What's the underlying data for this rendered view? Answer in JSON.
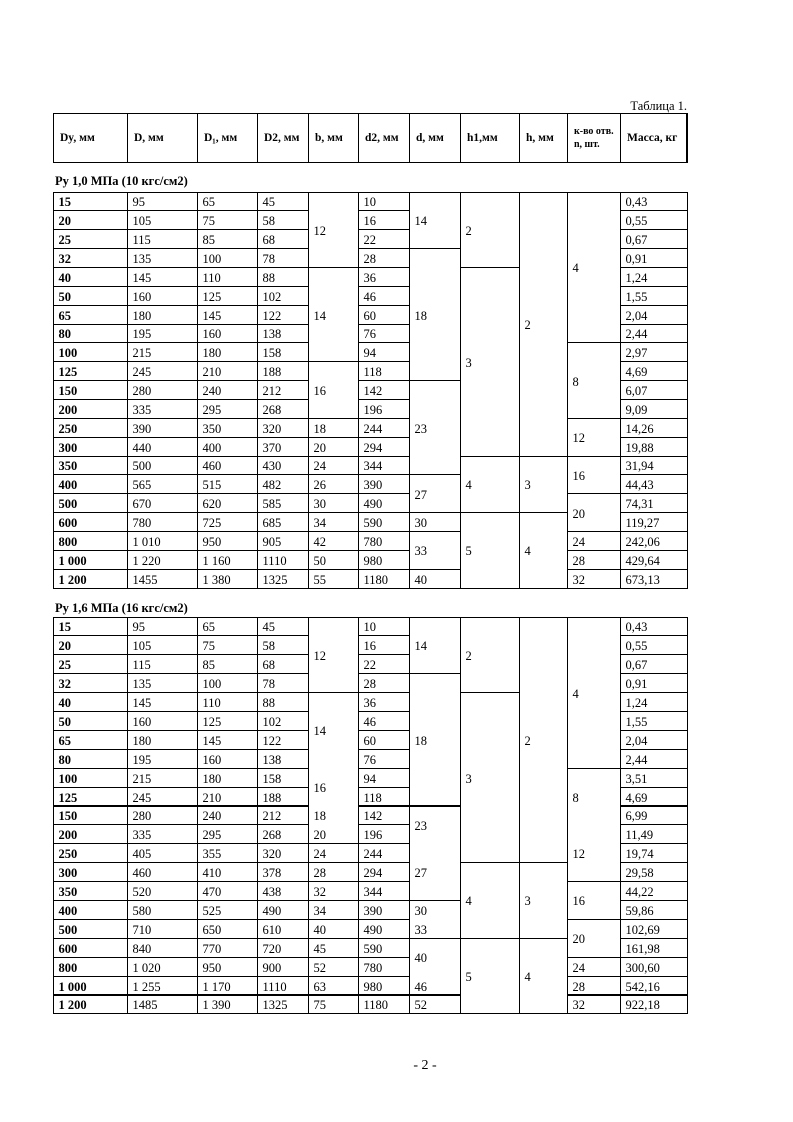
{
  "caption": "Таблица 1.",
  "headers": [
    "Dy, мм",
    "D, мм",
    "D₁, мм",
    "D2, мм",
    "b, мм",
    "d2, мм",
    "d, мм",
    "h1,мм",
    "h, мм",
    "к-во отв. n, шт.",
    "Масса, кг"
  ],
  "sections": [
    {
      "label": "Ру 1,0 МПа (10 кгс/см2)",
      "columns": {
        "dy": [
          "15",
          "20",
          "25",
          "32",
          "40",
          "50",
          "65",
          "80",
          "100",
          "125",
          "150",
          "200",
          "250",
          "300",
          "350",
          "400",
          "500",
          "600",
          "800",
          "1 000",
          "1 200"
        ],
        "D": [
          "95",
          "105",
          "115",
          "135",
          "145",
          "160",
          "180",
          "195",
          "215",
          "245",
          "280",
          "335",
          "390",
          "440",
          "500",
          "565",
          "670",
          "780",
          "1 010",
          "1 220",
          "1455"
        ],
        "D1": [
          "65",
          "75",
          "85",
          "100",
          "110",
          "125",
          "145",
          "160",
          "180",
          "210",
          "240",
          "295",
          "350",
          "400",
          "460",
          "515",
          "620",
          "725",
          "950",
          "1 160",
          "1 380"
        ],
        "D2": [
          "45",
          "58",
          "68",
          "78",
          "88",
          "102",
          "122",
          "138",
          "158",
          "188",
          "212",
          "268",
          "320",
          "370",
          "430",
          "482",
          "585",
          "685",
          "905",
          "1110",
          "1325"
        ],
        "b": [
          "12",
          "",
          "",
          "",
          "14",
          "",
          "",
          "",
          "",
          "16",
          "",
          "",
          "18",
          "20",
          "24",
          "26",
          "30",
          "34",
          "42",
          "50",
          "55"
        ],
        "d2": [
          "10",
          "16",
          "22",
          "28",
          "36",
          "46",
          "60",
          "76",
          "94",
          "118",
          "142",
          "196",
          "244",
          "294",
          "344",
          "390",
          "490",
          "590",
          "780",
          "980",
          "1180"
        ],
        "d": [
          "14",
          "",
          "",
          "18",
          "",
          "",
          "",
          "",
          "",
          "",
          "23",
          "",
          "",
          "",
          "",
          "27",
          "",
          "30",
          "33",
          "",
          "40"
        ],
        "h1": [
          "2",
          "",
          "",
          "",
          "3",
          "",
          "",
          "",
          "",
          "",
          "",
          "",
          "",
          "",
          "4",
          "",
          "",
          "5",
          "",
          "",
          ""
        ],
        "h": [
          "2",
          "",
          "",
          "",
          "",
          "",
          "",
          "",
          "",
          "",
          "",
          "",
          "",
          "",
          "3",
          "",
          "",
          "4",
          "",
          "",
          ""
        ],
        "n": [
          "4",
          "",
          "",
          "",
          "",
          "",
          "",
          "",
          "8",
          "",
          "",
          "",
          "12",
          "",
          "16",
          "",
          "20",
          "",
          "24",
          "28",
          "32"
        ],
        "mass": [
          "0,43",
          "0,55",
          "0,67",
          "0,91",
          "1,24",
          "1,55",
          "2,04",
          "2,44",
          "2,97",
          "4,69",
          "6,07",
          "9,09",
          "14,26",
          "19,88",
          "31,94",
          "44,43",
          "74,31",
          "119,27",
          "242,06",
          "429,64",
          "673,13"
        ]
      }
    },
    {
      "label": "Ру 1,6 МПа (16 кгс/см2)",
      "columns": {
        "dy": [
          "15",
          "20",
          "25",
          "32",
          "40",
          "50",
          "65",
          "80",
          "100",
          "125",
          "150",
          "200",
          "250",
          "300",
          "350",
          "400",
          "500",
          "600",
          "800",
          "1 000",
          "1 200"
        ],
        "D": [
          "95",
          "105",
          "115",
          "135",
          "145",
          "160",
          "180",
          "195",
          "215",
          "245",
          "280",
          "335",
          "405",
          "460",
          "520",
          "580",
          "710",
          "840",
          "1 020",
          "1 255",
          "1485"
        ],
        "D1": [
          "65",
          "75",
          "85",
          "100",
          "110",
          "125",
          "145",
          "160",
          "180",
          "210",
          "240",
          "295",
          "355",
          "410",
          "470",
          "525",
          "650",
          "770",
          "950",
          "1 170",
          "1 390"
        ],
        "D2": [
          "45",
          "58",
          "68",
          "78",
          "88",
          "102",
          "122",
          "138",
          "158",
          "188",
          "212",
          "268",
          "320",
          "378",
          "438",
          "490",
          "610",
          "720",
          "900",
          "1110",
          "1325"
        ],
        "b": [
          "12",
          "",
          "",
          "",
          "",
          "14",
          "",
          "",
          "16",
          "",
          "18",
          "20",
          "24",
          "28",
          "32",
          "34",
          "40",
          "45",
          "52",
          "63",
          "75"
        ],
        "d2": [
          "10",
          "16",
          "22",
          "28",
          "36",
          "46",
          "60",
          "76",
          "94",
          "118",
          "142",
          "196",
          "244",
          "294",
          "344",
          "390",
          "490",
          "590",
          "780",
          "980",
          "1180"
        ],
        "d": [
          "14",
          "",
          "",
          "18",
          "",
          "",
          "",
          "",
          "",
          "",
          "23",
          "",
          "",
          "27",
          "",
          "30",
          "33",
          "40",
          "",
          "46",
          "52"
        ],
        "h1": [
          "2",
          "",
          "",
          "",
          "3",
          "",
          "",
          "",
          "",
          "",
          "",
          "",
          "",
          "4",
          "",
          "",
          "",
          "5",
          "",
          "",
          ""
        ],
        "h": [
          "2",
          "",
          "",
          "",
          "",
          "",
          "",
          "",
          "",
          "",
          "",
          "",
          "",
          "3",
          "",
          "",
          "",
          "4",
          "",
          "",
          ""
        ],
        "n": [
          "4",
          "",
          "",
          "",
          "",
          "",
          "",
          "",
          "",
          "8",
          "",
          "",
          "12",
          "",
          "16",
          "",
          "20",
          "",
          "24",
          "28",
          "32"
        ],
        "mass": [
          "0,43",
          "0,55",
          "0,67",
          "0,91",
          "1,24",
          "1,55",
          "2,04",
          "2,44",
          "3,51",
          "4,69",
          "6,99",
          "11,49",
          "19,74",
          "29,58",
          "44,22",
          "59,86",
          "102,69",
          "161,98",
          "300,60",
          "542,16",
          "922,18"
        ]
      }
    }
  ],
  "page_number": "- 2 -"
}
